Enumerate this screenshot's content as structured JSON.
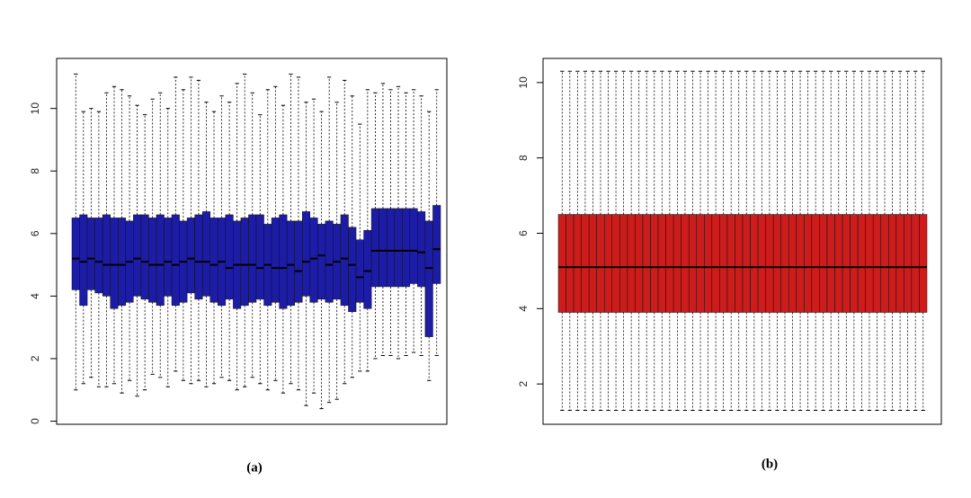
{
  "chart_data": [
    {
      "type": "box",
      "caption": "(a)",
      "color": "#1c1ca6",
      "ylim": [
        -0.1,
        11.6
      ],
      "yticks": [
        0,
        2,
        4,
        6,
        8,
        10
      ],
      "min": [
        1.0,
        1.2,
        1.4,
        1.1,
        1.1,
        1.2,
        0.9,
        1.3,
        0.8,
        1.0,
        1.5,
        1.4,
        1.1,
        1.6,
        1.3,
        1.2,
        1.3,
        1.1,
        1.2,
        1.4,
        1.3,
        1.0,
        1.1,
        1.4,
        1.2,
        1.0,
        1.3,
        0.9,
        1.2,
        1.0,
        0.5,
        0.9,
        0.4,
        0.6,
        0.7,
        1.2,
        1.4,
        1.6,
        1.6,
        2.0,
        2.1,
        2.1,
        2.0,
        2.1,
        2.2,
        2.1,
        1.3,
        2.1
      ],
      "q1": [
        4.2,
        3.7,
        4.2,
        4.1,
        4.0,
        3.6,
        3.7,
        3.8,
        4.0,
        3.9,
        3.8,
        3.7,
        4.0,
        3.7,
        3.8,
        4.1,
        3.9,
        4.0,
        3.8,
        3.7,
        3.9,
        3.6,
        3.7,
        3.8,
        3.9,
        3.7,
        3.8,
        3.6,
        3.7,
        3.8,
        4.0,
        3.8,
        3.9,
        3.8,
        3.9,
        3.7,
        3.5,
        3.8,
        3.6,
        4.3,
        4.3,
        4.3,
        4.3,
        4.3,
        4.4,
        4.3,
        2.7,
        4.4
      ],
      "median": [
        5.2,
        5.1,
        5.2,
        5.1,
        5.0,
        5.0,
        5.0,
        5.1,
        5.2,
        5.1,
        5.0,
        5.0,
        5.1,
        5.0,
        5.1,
        5.2,
        5.1,
        5.1,
        5.0,
        5.1,
        4.9,
        5.0,
        5.0,
        5.0,
        4.9,
        5.0,
        4.9,
        4.9,
        5.0,
        4.8,
        5.1,
        5.2,
        5.3,
        5.0,
        5.1,
        5.2,
        5.0,
        4.6,
        4.8,
        5.45,
        5.45,
        5.45,
        5.45,
        5.45,
        5.45,
        5.4,
        4.9,
        5.5
      ],
      "q3": [
        6.5,
        6.6,
        6.5,
        6.5,
        6.6,
        6.5,
        6.5,
        6.4,
        6.6,
        6.6,
        6.5,
        6.6,
        6.5,
        6.6,
        6.4,
        6.5,
        6.6,
        6.7,
        6.5,
        6.5,
        6.6,
        6.4,
        6.5,
        6.6,
        6.6,
        6.3,
        6.5,
        6.6,
        6.4,
        6.4,
        6.7,
        6.5,
        6.3,
        6.4,
        6.3,
        6.6,
        6.2,
        5.8,
        6.1,
        6.8,
        6.8,
        6.8,
        6.8,
        6.8,
        6.8,
        6.7,
        6.4,
        6.9
      ],
      "max": [
        11.1,
        9.9,
        10.0,
        9.9,
        10.5,
        10.7,
        10.6,
        10.4,
        10.1,
        9.8,
        10.3,
        10.5,
        10.0,
        11.0,
        10.6,
        11.0,
        10.9,
        10.2,
        9.9,
        10.4,
        10.2,
        10.8,
        11.1,
        10.5,
        9.8,
        10.6,
        10.7,
        10.1,
        11.1,
        11.0,
        10.2,
        10.3,
        9.9,
        11.0,
        10.2,
        10.9,
        10.4,
        9.5,
        10.6,
        10.5,
        10.8,
        10.6,
        10.7,
        10.5,
        10.6,
        10.4,
        9.9,
        10.6
      ]
    },
    {
      "type": "box",
      "caption": "(b)",
      "color": "#cc1c1c",
      "ylim": [
        0.93,
        10.64
      ],
      "yticks": [
        2,
        4,
        6,
        8,
        10
      ],
      "min": [
        1.3,
        1.3,
        1.3,
        1.3,
        1.3,
        1.3,
        1.3,
        1.3,
        1.3,
        1.3,
        1.3,
        1.3,
        1.3,
        1.3,
        1.3,
        1.3,
        1.3,
        1.3,
        1.3,
        1.3,
        1.3,
        1.3,
        1.3,
        1.3,
        1.3,
        1.3,
        1.3,
        1.3,
        1.3,
        1.3,
        1.3,
        1.3,
        1.3,
        1.3,
        1.3,
        1.3,
        1.3,
        1.3,
        1.3,
        1.3,
        1.3,
        1.3,
        1.3,
        1.3,
        1.3,
        1.3,
        1.3,
        1.3
      ],
      "q1": [
        3.9,
        3.9,
        3.9,
        3.9,
        3.9,
        3.9,
        3.9,
        3.9,
        3.9,
        3.9,
        3.9,
        3.9,
        3.9,
        3.9,
        3.9,
        3.9,
        3.9,
        3.9,
        3.9,
        3.9,
        3.9,
        3.9,
        3.9,
        3.9,
        3.9,
        3.9,
        3.9,
        3.9,
        3.9,
        3.9,
        3.9,
        3.9,
        3.9,
        3.9,
        3.9,
        3.9,
        3.9,
        3.9,
        3.9,
        3.9,
        3.9,
        3.9,
        3.9,
        3.9,
        3.9,
        3.9,
        3.9,
        3.9
      ],
      "median": [
        5.1,
        5.1,
        5.1,
        5.1,
        5.1,
        5.1,
        5.1,
        5.1,
        5.1,
        5.1,
        5.1,
        5.1,
        5.1,
        5.1,
        5.1,
        5.1,
        5.1,
        5.1,
        5.1,
        5.1,
        5.1,
        5.1,
        5.1,
        5.1,
        5.1,
        5.1,
        5.1,
        5.1,
        5.1,
        5.1,
        5.1,
        5.1,
        5.1,
        5.1,
        5.1,
        5.1,
        5.1,
        5.1,
        5.1,
        5.1,
        5.1,
        5.1,
        5.1,
        5.1,
        5.1,
        5.1,
        5.1,
        5.1
      ],
      "q3": [
        6.5,
        6.5,
        6.5,
        6.5,
        6.5,
        6.5,
        6.5,
        6.5,
        6.5,
        6.5,
        6.5,
        6.5,
        6.5,
        6.5,
        6.5,
        6.5,
        6.5,
        6.5,
        6.5,
        6.5,
        6.5,
        6.5,
        6.5,
        6.5,
        6.5,
        6.5,
        6.5,
        6.5,
        6.5,
        6.5,
        6.5,
        6.5,
        6.5,
        6.5,
        6.5,
        6.5,
        6.5,
        6.5,
        6.5,
        6.5,
        6.5,
        6.5,
        6.5,
        6.5,
        6.5,
        6.5,
        6.5,
        6.5
      ],
      "max": [
        10.3,
        10.3,
        10.3,
        10.3,
        10.3,
        10.3,
        10.3,
        10.3,
        10.3,
        10.3,
        10.3,
        10.3,
        10.3,
        10.3,
        10.3,
        10.3,
        10.3,
        10.3,
        10.3,
        10.3,
        10.3,
        10.3,
        10.3,
        10.3,
        10.3,
        10.3,
        10.3,
        10.3,
        10.3,
        10.3,
        10.3,
        10.3,
        10.3,
        10.3,
        10.3,
        10.3,
        10.3,
        10.3,
        10.3,
        10.3,
        10.3,
        10.3,
        10.3,
        10.3,
        10.3,
        10.3,
        10.3,
        10.3
      ]
    }
  ]
}
